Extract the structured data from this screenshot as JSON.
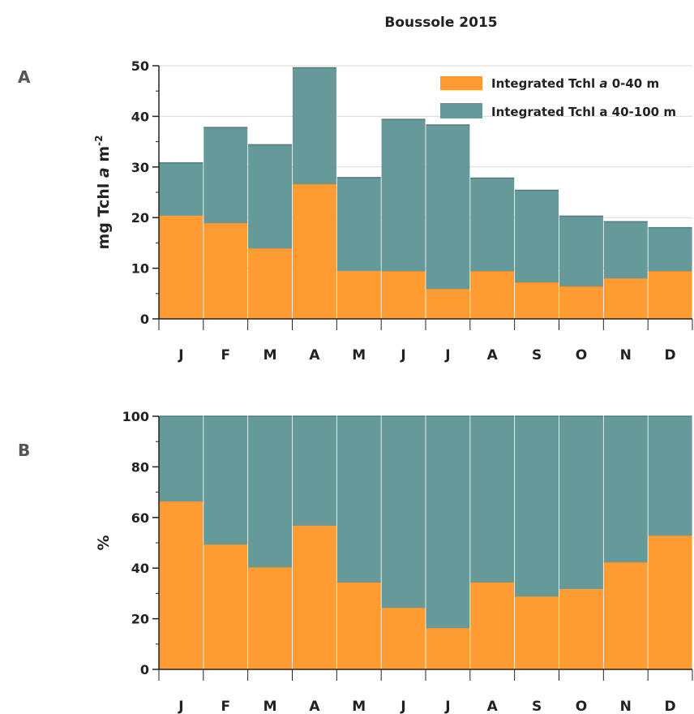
{
  "title": "Boussole 2015",
  "colors": {
    "surface": "#FF9B33",
    "deep": "#669999",
    "grid": "#D9D9D9",
    "axis": "#222222"
  },
  "legend": [
    {
      "label_pre": "Integrated Tchl ",
      "label_italic": "a",
      "label_post": " 0-40 m",
      "color": "#FF9B33"
    },
    {
      "label_pre": "Integrated Tchl a 40-100 m",
      "label_italic": "",
      "label_post": "",
      "color": "#669999"
    }
  ],
  "chart_data": [
    {
      "type": "bar",
      "stacked": true,
      "panel_label": "A",
      "ylabel": {
        "pre": "mg Tchl ",
        "italic": "a",
        "post": " m",
        "sup": "-2"
      },
      "ylim": [
        0,
        50
      ],
      "yticks": [
        "0",
        "10",
        "20",
        "30",
        "40",
        "50"
      ],
      "grid": true,
      "legend_position": "top-right",
      "categories": [
        "J",
        "F",
        "M",
        "A",
        "M",
        "J",
        "J",
        "A",
        "S",
        "O",
        "N",
        "D"
      ],
      "series": [
        {
          "name": "Integrated Tchl a 0-40 m",
          "values": [
            20.5,
            19.0,
            14.0,
            26.7,
            9.6,
            9.5,
            6.0,
            9.5,
            7.3,
            6.5,
            8.1,
            9.5
          ]
        },
        {
          "name": "Integrated Tchl a 40-100 m",
          "values": [
            10.3,
            18.8,
            20.4,
            22.9,
            18.3,
            29.9,
            32.3,
            18.3,
            18.1,
            13.8,
            11.1,
            8.5
          ]
        }
      ]
    },
    {
      "type": "bar",
      "stacked": true,
      "panel_label": "B",
      "ylabel": {
        "pre": "%",
        "italic": "",
        "post": "",
        "sup": ""
      },
      "ylim": [
        0,
        100
      ],
      "yticks": [
        "0",
        "20",
        "40",
        "60",
        "80",
        "100"
      ],
      "grid": false,
      "categories": [
        "J",
        "F",
        "M",
        "A",
        "M",
        "J",
        "J",
        "A",
        "S",
        "O",
        "N",
        "D"
      ],
      "series": [
        {
          "name": "Integrated Tchl a 0-40 m",
          "values": [
            66.5,
            49.5,
            40.5,
            57,
            34.5,
            24.5,
            16.5,
            34.5,
            29,
            32,
            42.5,
            53
          ]
        },
        {
          "name": "Integrated Tchl a 40-100 m",
          "values": [
            33.5,
            50.5,
            59.5,
            43,
            65.5,
            75.5,
            83.5,
            65.5,
            71,
            68,
            57.5,
            47
          ]
        }
      ]
    }
  ]
}
